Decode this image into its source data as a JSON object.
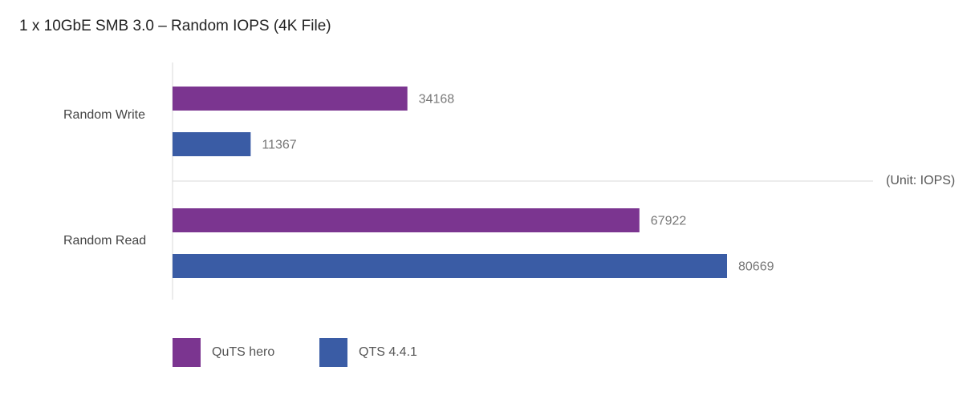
{
  "chart_data": {
    "type": "bar",
    "orientation": "horizontal",
    "title": "1 x 10GbE SMB 3.0 – Random IOPS (4K File)",
    "unit_note": "(Unit: IOPS)",
    "categories": [
      "Random Write",
      "Random Read"
    ],
    "series": [
      {
        "name": "QuTS hero",
        "color": "#7b3590",
        "values": [
          34168,
          67922
        ]
      },
      {
        "name": "QTS 4.4.1",
        "color": "#3a5ca5",
        "values": [
          11367,
          80669
        ]
      }
    ],
    "xlim": [
      0,
      100000
    ],
    "grid": false,
    "legend": "bottom-left",
    "data_labels": true
  }
}
